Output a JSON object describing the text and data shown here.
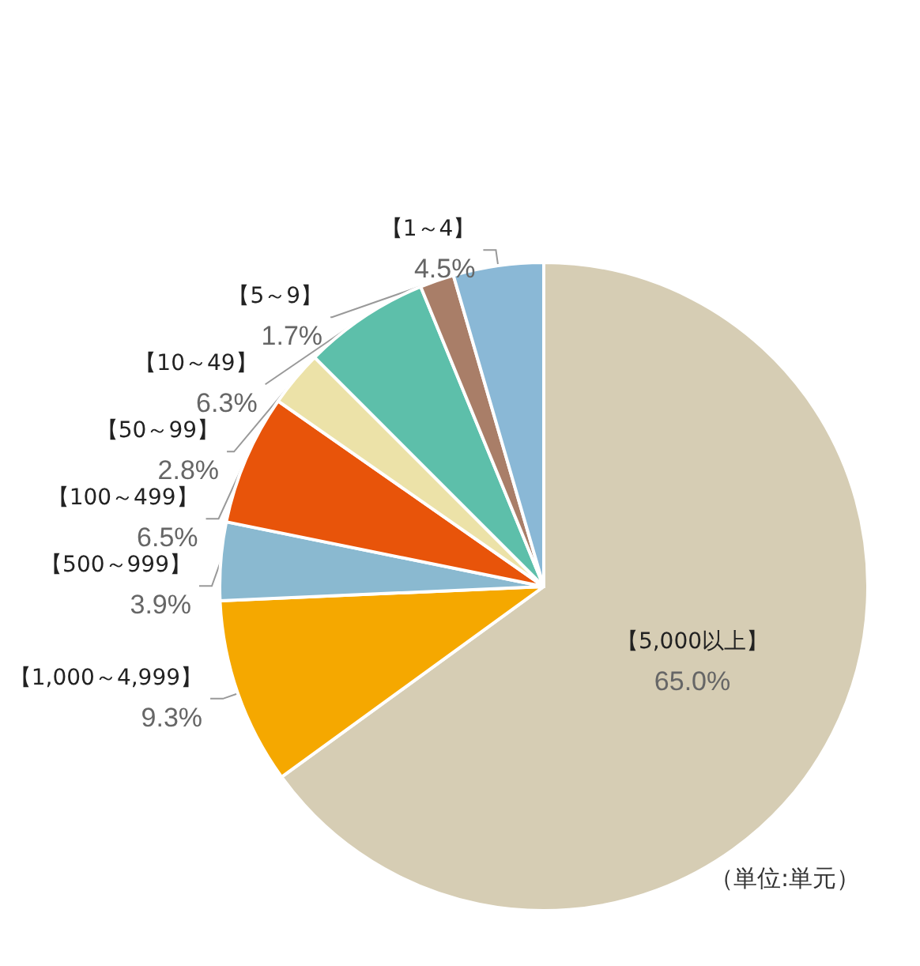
{
  "chart_data": {
    "type": "pie",
    "categories": [
      "【5,000以上】",
      "【1,000～4,999】",
      "【500～999】",
      "【100～499】",
      "【50～99】",
      "【10～49】",
      "【5～9】",
      "【1～4】"
    ],
    "values": [
      65.0,
      9.3,
      3.9,
      6.5,
      2.8,
      6.3,
      1.7,
      4.5
    ],
    "colors": [
      "#d6cdb4",
      "#f5a800",
      "#8ab9d0",
      "#e8540a",
      "#ece2a8",
      "#5dbfaa",
      "#a97e68",
      "#8ab8d6"
    ],
    "value_labels": [
      "65.0%",
      "9.3%",
      "3.9%",
      "6.5%",
      "2.8%",
      "6.3%",
      "1.7%",
      "4.5%"
    ],
    "annotations": [
      "（単位:単元）"
    ],
    "legend": false
  }
}
